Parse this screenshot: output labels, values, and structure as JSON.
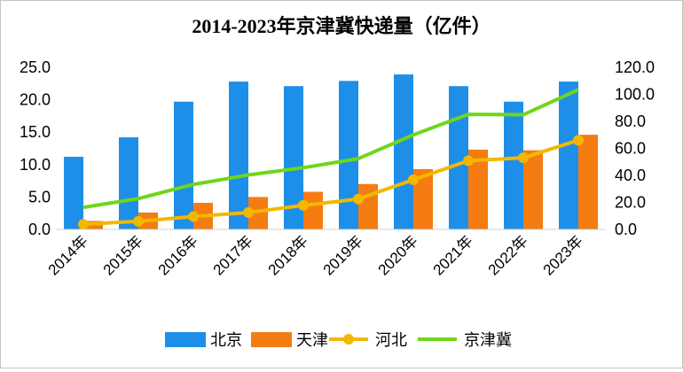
{
  "chart_data": {
    "type": "bar",
    "title": "2014-2023年京津冀快递量（亿件）",
    "categories": [
      "2014年",
      "2015年",
      "2016年",
      "2017年",
      "2018年",
      "2019年",
      "2020年",
      "2021年",
      "2022年",
      "2023年"
    ],
    "series": [
      {
        "name": "北京",
        "type": "bar",
        "axis": "left",
        "color": "#1e8fe8",
        "values": [
          11.2,
          14.2,
          19.7,
          22.8,
          22.1,
          22.9,
          23.9,
          22.1,
          19.7,
          22.8
        ]
      },
      {
        "name": "天津",
        "type": "bar",
        "axis": "left",
        "color": "#f57c10",
        "values": [
          1.3,
          2.6,
          4.1,
          5.0,
          5.8,
          7.0,
          9.3,
          12.3,
          12.2,
          14.6
        ]
      },
      {
        "name": "河北",
        "type": "line",
        "axis": "right",
        "color": "#f2b800",
        "values": [
          3.8,
          6.0,
          9.5,
          12.5,
          17.8,
          22.5,
          36.8,
          50.8,
          53.0,
          66.0
        ]
      },
      {
        "name": "京津冀",
        "type": "line",
        "axis": "right",
        "color": "#6fd61a",
        "values": [
          16.3,
          22.8,
          33.3,
          40.3,
          45.7,
          52.4,
          70.0,
          85.2,
          84.9,
          103.4
        ]
      }
    ],
    "y_left": {
      "min": 0,
      "max": 25,
      "step": 5,
      "tick_labels": [
        "0.0",
        "5.0",
        "10.0",
        "15.0",
        "20.0",
        "25.0"
      ]
    },
    "y_right": {
      "min": 0,
      "max": 120,
      "step": 20,
      "tick_labels": [
        "0.0",
        "20.0",
        "40.0",
        "60.0",
        "80.0",
        "100.0",
        "120.0"
      ]
    },
    "grid": false,
    "legend_position": "bottom"
  }
}
